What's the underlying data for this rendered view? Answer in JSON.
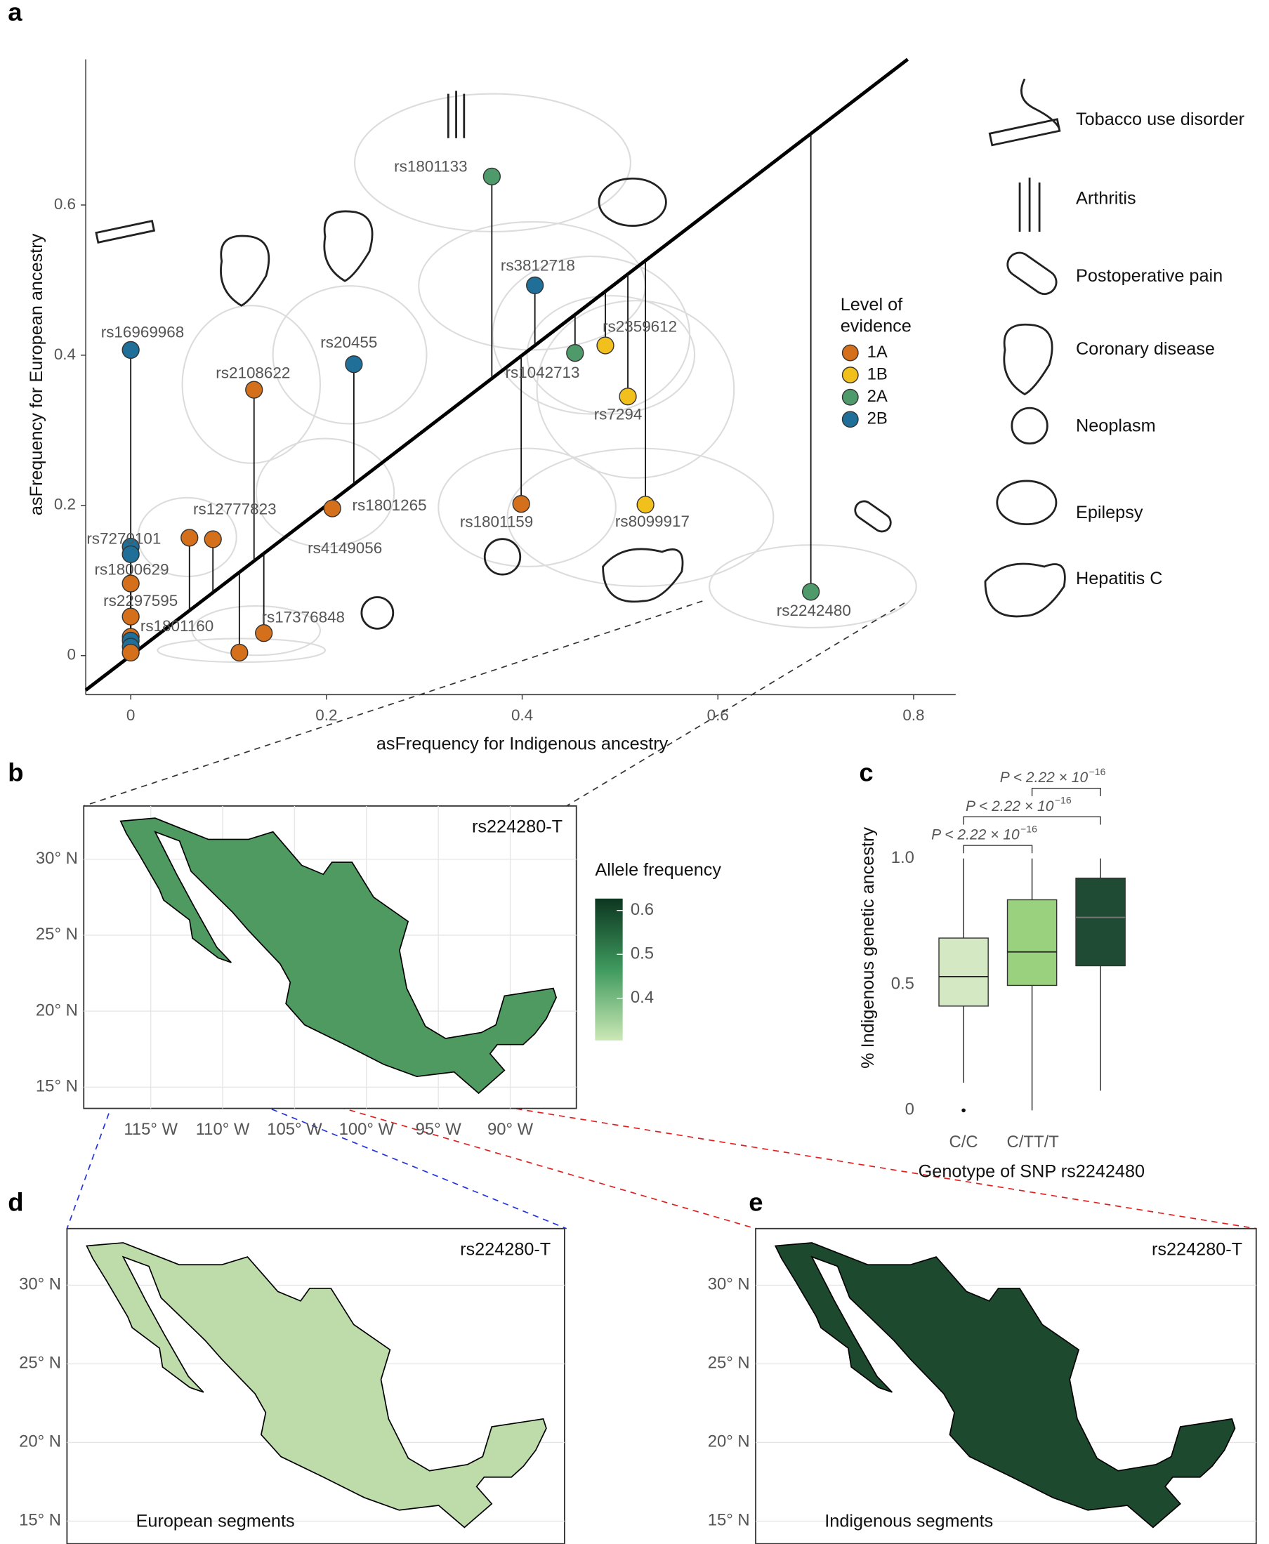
{
  "chart_data": [
    {
      "type": "scatter",
      "panel": "a",
      "xlabel": "asFrequency for Indigenous ancestry",
      "ylabel": "asFrequency for European ancestry",
      "xlim": [
        -0.046,
        0.843
      ],
      "ylim": [
        -0.052,
        0.794
      ],
      "xticks": [
        0,
        0.2,
        0.4,
        0.6,
        0.8
      ],
      "yticks": [
        0,
        0.2,
        0.4,
        0.6
      ],
      "legend_title": [
        "Level of",
        "evidence"
      ],
      "levels": [
        {
          "name": "1A",
          "color": "#d4701c"
        },
        {
          "name": "1B",
          "color": "#f2c01c"
        },
        {
          "name": "2A",
          "color": "#4e9a6a"
        },
        {
          "name": "2B",
          "color": "#1f6f98"
        }
      ],
      "points": {
        "labels": [
          "rs1801133",
          "rs3812718",
          "rs16969968",
          "rs20455",
          "rs2108622",
          "rs2359612",
          "rs1042713",
          "rs7294",
          "rs1801265",
          "rs1801159",
          "rs8099917",
          "rs2242480",
          "rs12777823",
          "rs4149056",
          "rs17376848",
          null,
          "rs7270101",
          null,
          "rs1800629",
          "rs2297595",
          "rs1801160",
          null,
          null,
          null
        ],
        "x": [
          0.369,
          0.413,
          0,
          0.228,
          0.126,
          0.485,
          0.454,
          0.508,
          0.206,
          0.399,
          0.526,
          0.695,
          0.06,
          0.084,
          0.136,
          0.111,
          0,
          0,
          0,
          0,
          0,
          0,
          0,
          0
        ],
        "y": [
          0.638,
          0.493,
          0.407,
          0.388,
          0.354,
          0.413,
          0.403,
          0.345,
          0.196,
          0.202,
          0.201,
          0.085,
          0.157,
          0.155,
          0.03,
          0.004,
          0.145,
          0.135,
          0.096,
          0.052,
          0.025,
          0.02,
          0.012,
          0.004
        ],
        "level": [
          "2A",
          "2B",
          "2B",
          "2B",
          "1A",
          "1B",
          "2A",
          "1B",
          "1A",
          "1A",
          "1B",
          "2A",
          "1A",
          "1A",
          "1A",
          "1A",
          "2B",
          "2B",
          "1A",
          "1A",
          "1A",
          "2B",
          "2B",
          "1A"
        ]
      },
      "disease_legend": [
        "Tobacco use disorder",
        "Arthritis",
        "Postoperative pain",
        "Coronary disease",
        "Neoplasm",
        "Epilepsy",
        "Hepatitis C"
      ]
    },
    {
      "type": "map",
      "panel": "b",
      "title": "rs224280-T",
      "fill": "#4f9a60",
      "xlim": [
        -119.66,
        -85.4
      ],
      "ylim": [
        13.6,
        33.5
      ],
      "xticks": [
        {
          "value": -115,
          "label": "115° W"
        },
        {
          "value": -110,
          "label": "110° W"
        },
        {
          "value": -105,
          "label": "105° W"
        },
        {
          "value": -100,
          "label": "100° W"
        },
        {
          "value": -95,
          "label": "95° W"
        },
        {
          "value": -90,
          "label": "90° W"
        }
      ],
      "yticks": [
        {
          "value": 15,
          "label": "15° N"
        },
        {
          "value": 20,
          "label": "20° N"
        },
        {
          "value": 25,
          "label": "25° N"
        },
        {
          "value": 30,
          "label": "30° N"
        }
      ],
      "colorbar": {
        "title": "Allele frequency",
        "lim": [
          0.304,
          0.627
        ],
        "ticks": [
          0.4,
          0.5,
          0.6
        ],
        "colors": [
          "#cbe8b5",
          "#3f9a5e",
          "#0c3620"
        ]
      }
    },
    {
      "type": "box",
      "panel": "c",
      "xlabel": "Genotype of SNP rs2242480",
      "ylabel": "% Indigenous genetic ancestry",
      "categories": [
        "C/C",
        "C/T",
        "T/T"
      ],
      "colors": [
        "#d3e8c3",
        "#9ad17f",
        "#1f4a33"
      ],
      "whisker_low": [
        0.11,
        0,
        0.078
      ],
      "q1": [
        0.414,
        0.496,
        0.574
      ],
      "median": [
        0.531,
        0.629,
        0.766
      ],
      "q3": [
        0.684,
        0.836,
        0.922
      ],
      "whisker_high": [
        1.0,
        1.0,
        1.0
      ],
      "outliers": [
        {
          "category": 0,
          "value": 0
        }
      ],
      "ylim": [
        -0.09,
        1.4
      ],
      "yticks": [
        0,
        0.5,
        {
          "value": 1,
          "label": "1.0"
        }
      ],
      "brackets": [
        {
          "pair": [
            0,
            1
          ],
          "text": "P < 2.22 × 10",
          "exponent": "−16"
        },
        {
          "pair": [
            0,
            2
          ],
          "text": "P < 2.22 × 10",
          "exponent": "−16"
        },
        {
          "pair": [
            1,
            2
          ],
          "text": "P < 2.22 × 10",
          "exponent": "−16"
        }
      ]
    },
    {
      "type": "map",
      "panel": "d",
      "title": "rs224280-T",
      "fill": "#bddcaa",
      "caption": "European segments",
      "xlim": [
        -118.4,
        -85.6
      ],
      "ylim": [
        13.56,
        33.6
      ],
      "yticks": [
        {
          "value": 15,
          "label": "15° N"
        },
        {
          "value": 20,
          "label": "20° N"
        },
        {
          "value": 25,
          "label": "25° N"
        },
        {
          "value": 30,
          "label": "30° N"
        }
      ]
    },
    {
      "type": "map",
      "panel": "e",
      "title": "rs224280-T",
      "fill": "#1d4a2e",
      "caption": "Indigenous segments",
      "xlim": [
        -118.4,
        -85.4
      ],
      "ylim": [
        13.56,
        33.6
      ],
      "yticks": [
        {
          "value": 15,
          "label": "15° N"
        },
        {
          "value": 20,
          "label": "20° N"
        },
        {
          "value": 25,
          "label": "25° N"
        },
        {
          "value": 30,
          "label": "30° N"
        }
      ]
    }
  ]
}
